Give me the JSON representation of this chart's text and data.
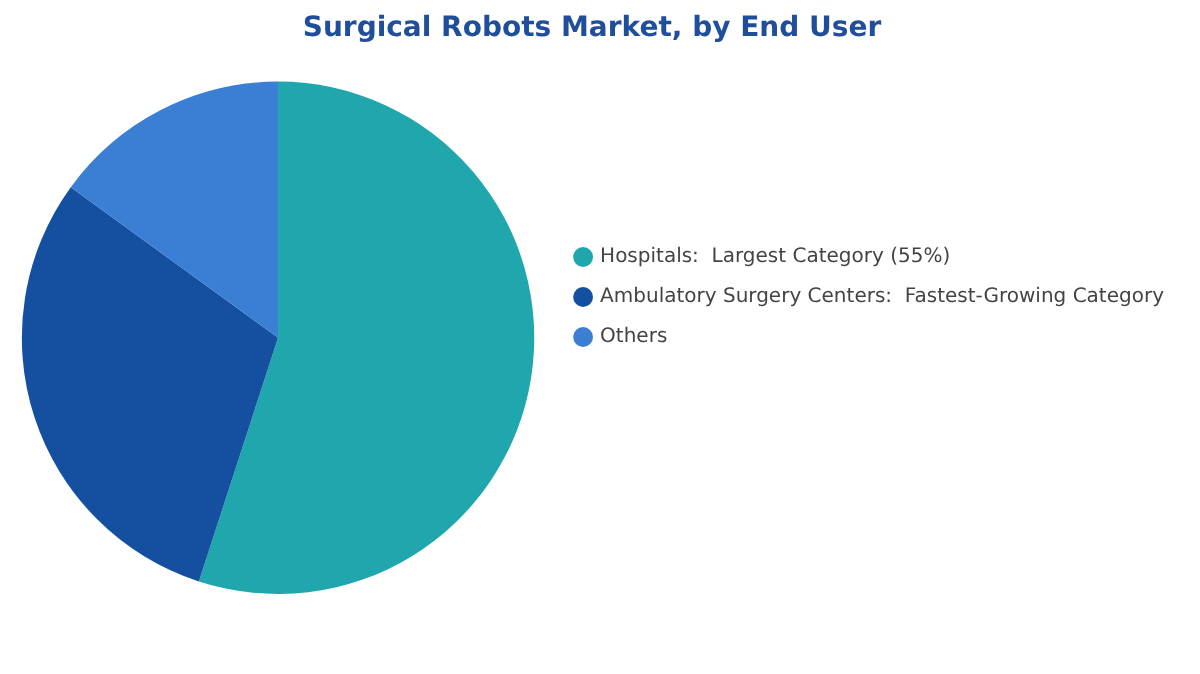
{
  "chart_data": {
    "type": "pie",
    "title": "Surgical Robots Market, by End User",
    "categories": [
      "Hospitals:  Largest Category (55%)",
      "Ambulatory Surgery Centers:  Fastest-Growing Category",
      "Others"
    ],
    "values": [
      55,
      30,
      15
    ],
    "colors": [
      "#20a7ad",
      "#1550a0",
      "#3a7fd4"
    ],
    "legend": "right"
  }
}
